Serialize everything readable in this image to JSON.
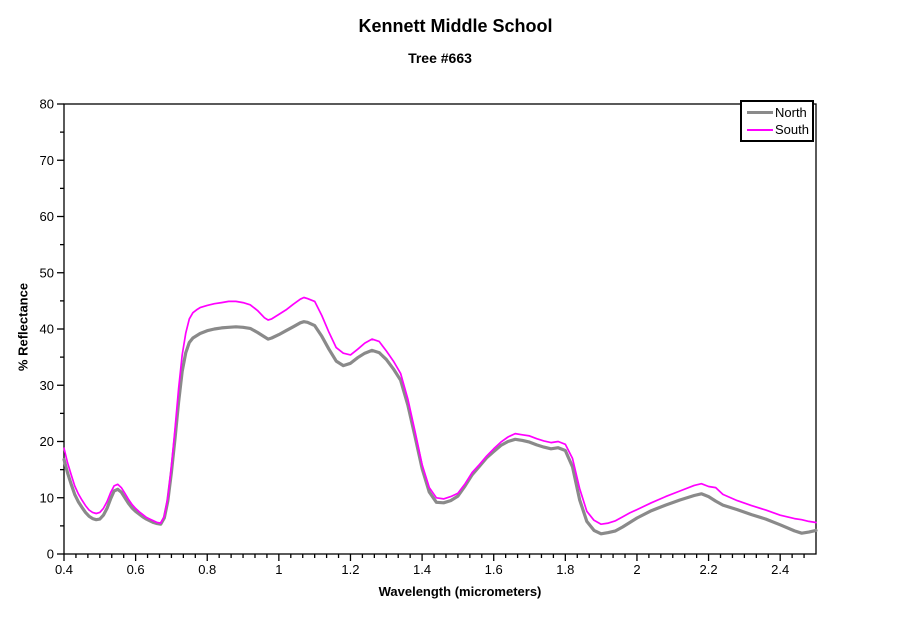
{
  "chart_data": {
    "type": "line",
    "title": "Kennett Middle School",
    "subtitle": "Tree #663",
    "xlabel": "Wavelength (micrometers)",
    "ylabel": "% Reflectance",
    "xlim": [
      0.4,
      2.5
    ],
    "ylim": [
      0,
      80
    ],
    "grid": false,
    "legend_position": "top-right",
    "x_major_ticks": [
      0.4,
      0.6,
      0.8,
      1.0,
      1.2,
      1.4,
      1.6,
      1.8,
      2.0,
      2.2,
      2.4
    ],
    "x_tick_labels": [
      "0.4",
      "0.6",
      "0.8",
      "1",
      "1.2",
      "1.4",
      "1.6",
      "1.8",
      "2",
      "2.2",
      "2.4"
    ],
    "x_minor_divisions_per_major": 6,
    "y_major_ticks": [
      0,
      10,
      20,
      30,
      40,
      50,
      60,
      70,
      80
    ],
    "y_tick_labels": [
      "0",
      "10",
      "20",
      "30",
      "40",
      "50",
      "60",
      "70",
      "80"
    ],
    "y_minor_step": 5,
    "axis_color": "#000000",
    "x": [
      0.4,
      0.41,
      0.42,
      0.43,
      0.44,
      0.45,
      0.46,
      0.47,
      0.48,
      0.49,
      0.5,
      0.51,
      0.52,
      0.53,
      0.54,
      0.55,
      0.56,
      0.57,
      0.58,
      0.59,
      0.6,
      0.61,
      0.62,
      0.63,
      0.64,
      0.65,
      0.66,
      0.67,
      0.68,
      0.69,
      0.7,
      0.71,
      0.72,
      0.73,
      0.74,
      0.75,
      0.76,
      0.77,
      0.78,
      0.8,
      0.82,
      0.84,
      0.86,
      0.88,
      0.9,
      0.92,
      0.94,
      0.96,
      0.97,
      0.98,
      1.0,
      1.02,
      1.04,
      1.06,
      1.07,
      1.08,
      1.1,
      1.12,
      1.14,
      1.16,
      1.18,
      1.2,
      1.22,
      1.24,
      1.26,
      1.28,
      1.3,
      1.32,
      1.34,
      1.36,
      1.38,
      1.4,
      1.42,
      1.44,
      1.46,
      1.48,
      1.5,
      1.52,
      1.54,
      1.56,
      1.58,
      1.6,
      1.62,
      1.64,
      1.66,
      1.68,
      1.7,
      1.72,
      1.74,
      1.76,
      1.78,
      1.8,
      1.82,
      1.84,
      1.86,
      1.88,
      1.9,
      1.92,
      1.94,
      1.96,
      1.98,
      2.0,
      2.04,
      2.08,
      2.12,
      2.16,
      2.18,
      2.2,
      2.22,
      2.24,
      2.28,
      2.32,
      2.36,
      2.4,
      2.44,
      2.46,
      2.48,
      2.5
    ],
    "series": [
      {
        "name": "North",
        "color": "#8a8a8a",
        "line_width": 3.2,
        "values": [
          16.8,
          14.4,
          12.4,
          10.6,
          9.3,
          8.3,
          7.4,
          6.7,
          6.3,
          6.1,
          6.2,
          6.9,
          8.1,
          9.8,
          11.2,
          11.5,
          11.0,
          10.0,
          9.0,
          8.2,
          7.6,
          7.1,
          6.6,
          6.2,
          5.9,
          5.6,
          5.4,
          5.3,
          6.4,
          9.4,
          14.5,
          20.5,
          27.0,
          32.5,
          35.8,
          37.6,
          38.4,
          38.8,
          39.2,
          39.7,
          40.0,
          40.2,
          40.3,
          40.4,
          40.3,
          40.1,
          39.4,
          38.6,
          38.2,
          38.4,
          39.0,
          39.7,
          40.4,
          41.1,
          41.3,
          41.2,
          40.6,
          38.7,
          36.4,
          34.3,
          33.5,
          33.9,
          34.9,
          35.7,
          36.2,
          35.8,
          34.6,
          32.9,
          30.9,
          26.5,
          21.0,
          15.2,
          11.0,
          9.2,
          9.1,
          9.5,
          10.3,
          12.1,
          14.1,
          15.6,
          17.1,
          18.2,
          19.3,
          20.0,
          20.4,
          20.2,
          19.9,
          19.4,
          19.0,
          18.7,
          18.9,
          18.4,
          15.5,
          9.6,
          5.8,
          4.2,
          3.6,
          3.8,
          4.1,
          4.8,
          5.6,
          6.4,
          7.7,
          8.7,
          9.6,
          10.4,
          10.7,
          10.2,
          9.4,
          8.7,
          7.9,
          7.0,
          6.2,
          5.2,
          4.1,
          3.7,
          3.9,
          4.2
        ]
      },
      {
        "name": "South",
        "color": "#ff00ff",
        "line_width": 1.7,
        "values": [
          18.8,
          16.2,
          14.1,
          12.1,
          10.7,
          9.6,
          8.6,
          7.8,
          7.4,
          7.2,
          7.4,
          8.1,
          9.3,
          10.9,
          12.1,
          12.4,
          11.8,
          10.8,
          9.7,
          8.8,
          8.1,
          7.5,
          7.0,
          6.5,
          6.2,
          5.9,
          5.6,
          5.5,
          6.7,
          10.0,
          15.6,
          22.2,
          29.4,
          35.4,
          39.3,
          41.8,
          42.9,
          43.4,
          43.8,
          44.2,
          44.5,
          44.7,
          44.9,
          44.9,
          44.7,
          44.3,
          43.3,
          42.0,
          41.6,
          41.8,
          42.6,
          43.4,
          44.4,
          45.3,
          45.6,
          45.4,
          44.9,
          42.4,
          39.4,
          36.7,
          35.7,
          35.4,
          36.4,
          37.5,
          38.2,
          37.8,
          36.1,
          34.3,
          32.1,
          27.6,
          21.9,
          15.9,
          11.8,
          10.0,
          9.8,
          10.2,
          10.8,
          12.5,
          14.5,
          15.9,
          17.4,
          18.7,
          19.9,
          20.8,
          21.4,
          21.2,
          21.0,
          20.5,
          20.1,
          19.8,
          20.0,
          19.5,
          17.0,
          11.6,
          7.6,
          6.0,
          5.3,
          5.5,
          5.9,
          6.6,
          7.3,
          7.9,
          9.1,
          10.2,
          11.2,
          12.2,
          12.5,
          12.0,
          11.8,
          10.6,
          9.5,
          8.6,
          7.8,
          6.9,
          6.3,
          6.1,
          5.8,
          5.6
        ]
      }
    ]
  }
}
